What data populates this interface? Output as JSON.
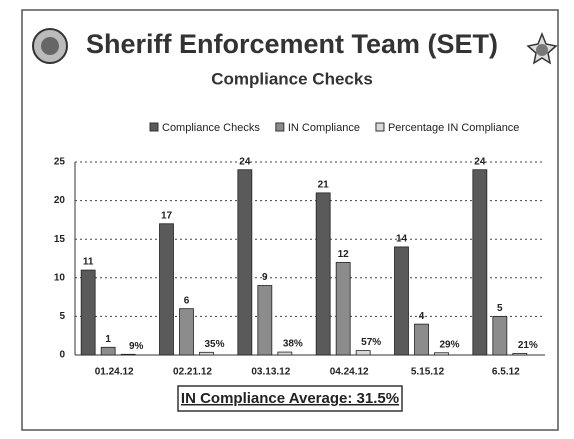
{
  "chart_data": {
    "type": "bar",
    "title": "Sheriff Enforcement Team (SET)",
    "subtitle": "Compliance Checks",
    "annotation": "IN Compliance Average: 31.5%",
    "categories": [
      "01.24.12",
      "02.21.12",
      "03.13.12",
      "04.24.12",
      "5.15.12",
      "6.5.12"
    ],
    "series": [
      {
        "name": "Compliance Checks",
        "color": "#5a5a5a",
        "values": [
          11,
          17,
          24,
          21,
          14,
          24
        ]
      },
      {
        "name": "IN Compliance",
        "color": "#8c8c8c",
        "values": [
          1,
          6,
          9,
          12,
          4,
          5
        ]
      },
      {
        "name": "Percentage IN Compliance",
        "color": "#d8d8d8",
        "values": [
          0.09,
          0.35,
          0.38,
          0.57,
          0.29,
          0.21
        ],
        "value_labels": [
          "9%",
          "35%",
          "38%",
          "57%",
          "29%",
          "21%"
        ]
      }
    ],
    "ylim": [
      0,
      25
    ],
    "yticks": [
      0,
      5,
      10,
      15,
      20,
      25
    ],
    "grid": true,
    "legend": "top"
  }
}
